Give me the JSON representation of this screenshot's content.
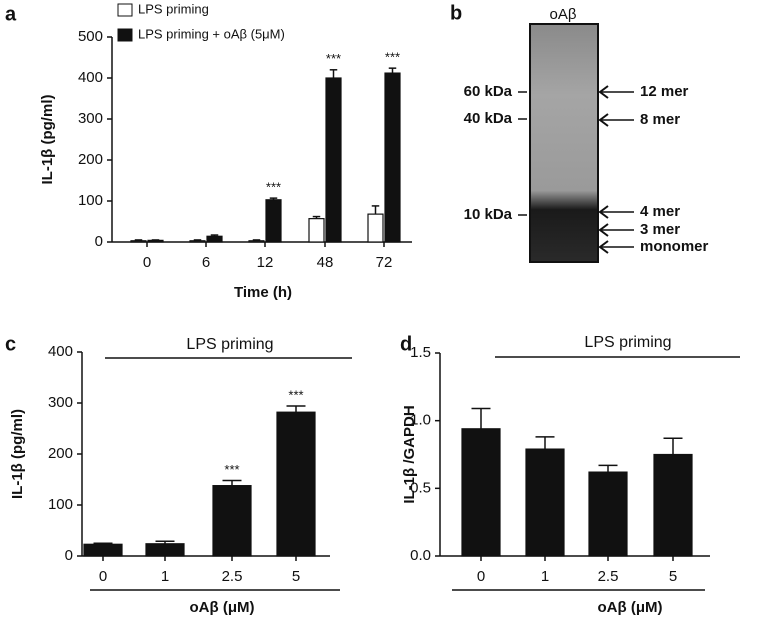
{
  "chart_data": [
    {
      "type": "bar",
      "panel_label": "a",
      "xlabel": "Time (h)",
      "ylabel": "IL-1β (pg/ml)",
      "categories": [
        "0",
        "6",
        "12",
        "48",
        "72"
      ],
      "series": [
        {
          "name": "LPS priming",
          "color": "#ffffff",
          "values": [
            3,
            3,
            3,
            57,
            68
          ],
          "errors": [
            2,
            2,
            2,
            5,
            20
          ],
          "labels": [
            null,
            null,
            null,
            null,
            null
          ]
        },
        {
          "name": "LPS priming + oAβ (5μM)",
          "color": "#111111",
          "values": [
            4,
            14,
            103,
            400,
            412
          ],
          "errors": [
            1,
            3,
            4,
            20,
            12
          ],
          "labels": [
            null,
            null,
            "***",
            "***",
            "***"
          ]
        }
      ],
      "ylim": [
        0,
        500
      ],
      "yticks": [
        0,
        100,
        200,
        300,
        400,
        500
      ]
    },
    {
      "type": "bar",
      "panel_label": "c",
      "annotation": "LPS priming",
      "xlabel": "oAβ (μM)",
      "ylabel": "IL-1β (pg/ml)",
      "categories": [
        "0",
        "1",
        "2.5",
        "5"
      ],
      "series": [
        {
          "color": "#111111",
          "values": [
            23,
            24,
            138,
            282
          ],
          "errors": [
            2,
            5,
            10,
            12
          ],
          "labels": [
            null,
            null,
            "***",
            "***"
          ]
        }
      ],
      "ylim": [
        0,
        400
      ],
      "yticks": [
        0,
        100,
        200,
        300,
        400
      ]
    },
    {
      "type": "bar",
      "panel_label": "d",
      "annotation": "LPS priming",
      "xlabel": "oAβ (μM)",
      "ylabel": "IL-1β /GAPDH",
      "categories": [
        "0",
        "1",
        "2.5",
        "5"
      ],
      "series": [
        {
          "color": "#111111",
          "values": [
            0.94,
            0.79,
            0.62,
            0.75
          ],
          "errors": [
            0.15,
            0.09,
            0.05,
            0.12
          ],
          "labels": [
            null,
            null,
            null,
            null
          ]
        }
      ],
      "ylim": [
        0,
        1.5
      ],
      "yticks": [
        {
          "value": 0,
          "label": "0.0"
        },
        {
          "value": 0.5,
          "label": "0.5"
        },
        {
          "value": 1,
          "label": "1.0"
        },
        {
          "value": 1.5,
          "label": "1.5"
        }
      ]
    }
  ],
  "blot": {
    "panel_label": "b",
    "lane": "oAβ",
    "markers": [
      "60 kDa",
      "40 kDa",
      "10 kDa"
    ],
    "bands": [
      "12 mer",
      "8 mer",
      "4 mer",
      "3 mer",
      "monomer"
    ]
  }
}
